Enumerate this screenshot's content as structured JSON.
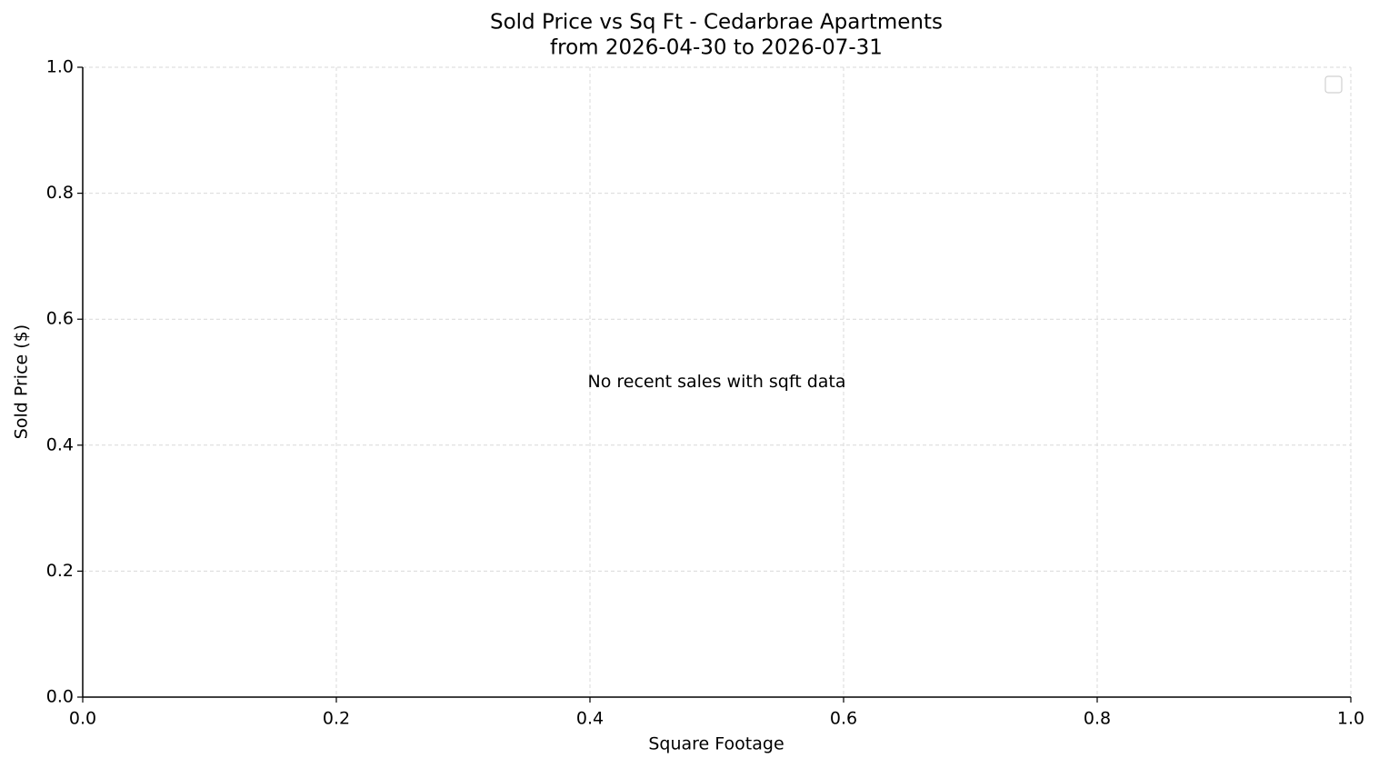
{
  "chart_data": {
    "type": "scatter",
    "title": "Sold Price vs Sq Ft - Cedarbrae Apartments",
    "subtitle": "from 2026-04-30 to 2026-07-31",
    "x_label": "Square Footage",
    "y_label": "Sold Price ($)",
    "annotation": "No recent sales with sqft data",
    "series": [],
    "xlim": [
      0,
      1
    ],
    "ylim": [
      0,
      1
    ],
    "xticks": [
      {
        "value": 0,
        "label": "0.0"
      },
      0.2,
      0.4,
      0.6,
      0.8,
      {
        "value": 1,
        "label": "1.0"
      }
    ],
    "yticks": [
      {
        "value": 0,
        "label": "0.0"
      },
      0.2,
      0.4,
      0.6,
      0.8,
      {
        "value": 1,
        "label": "1.0"
      }
    ],
    "grid": true,
    "legend": "upper right"
  }
}
